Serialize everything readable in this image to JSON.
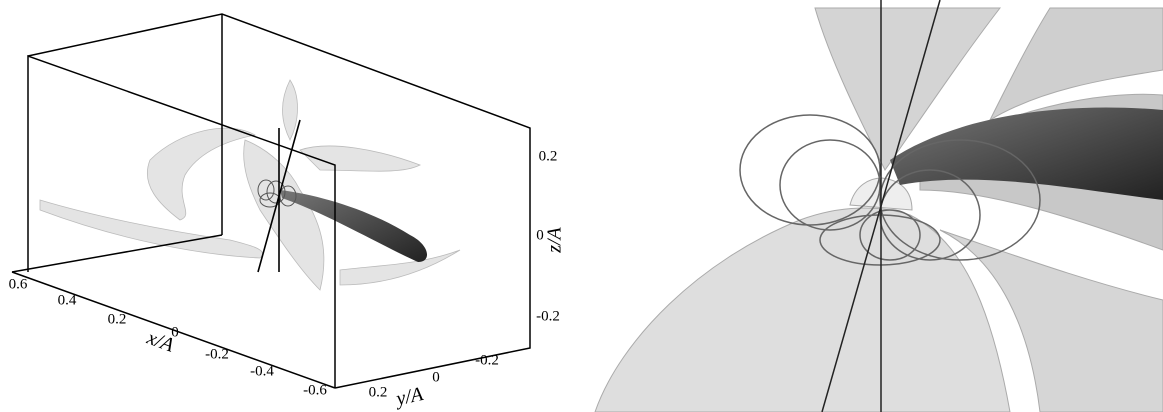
{
  "left_panel": {
    "x_axis": {
      "label": "x/A",
      "ticks": [
        "0.6",
        "0.4",
        "0.2",
        "0",
        "-0.2",
        "-0.4",
        "-0.6"
      ]
    },
    "y_axis": {
      "label": "y/A",
      "ticks": [
        "0.2",
        "0",
        "-0.2"
      ]
    },
    "z_axis": {
      "label": "z/A",
      "ticks": [
        "0.2",
        "0",
        "-0.2"
      ]
    }
  }
}
